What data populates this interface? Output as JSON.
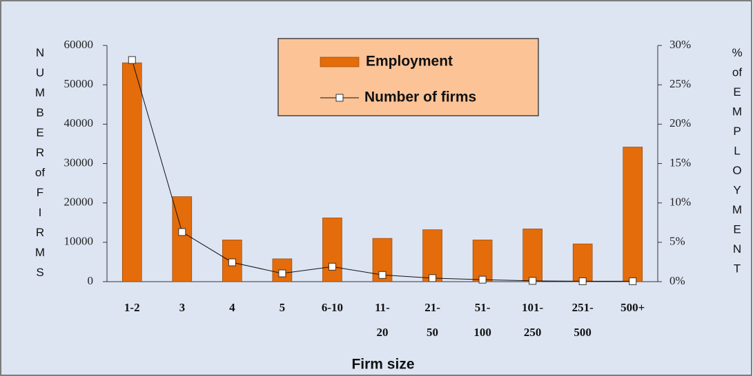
{
  "chart_data": {
    "type": "bar_line",
    "x_label": "Firm size",
    "y_label": "NUMBER of FIRMS",
    "y2_label": "% of EMPLOYMENT",
    "categories": [
      "1-2",
      "3",
      "4",
      "5",
      "6-10",
      "11-20",
      "21-50",
      "51-100",
      "101-250",
      "251-500",
      "500+"
    ],
    "series": [
      {
        "name": "Employment",
        "type": "bar",
        "axis": "y2",
        "color": "#e46c0a",
        "values": [
          27.8,
          10.8,
          5.3,
          2.9,
          8.1,
          5.5,
          6.6,
          5.3,
          6.7,
          4.8,
          17.1
        ]
      },
      {
        "name": "Number of firms",
        "type": "line",
        "axis": "y",
        "color": "#111111",
        "values": [
          56300,
          12600,
          4900,
          2100,
          3800,
          1700,
          900,
          500,
          200,
          100,
          100
        ]
      }
    ],
    "ylim": [
      0,
      60000
    ],
    "yticks": [
      0,
      10000,
      20000,
      30000,
      40000,
      50000,
      60000
    ],
    "y2lim": [
      0,
      30
    ],
    "y2ticks": [
      {
        "value": 0,
        "label": "0%"
      },
      {
        "value": 5,
        "label": "5%"
      },
      {
        "value": 10,
        "label": "10%"
      },
      {
        "value": 15,
        "label": "15%"
      },
      {
        "value": 20,
        "label": "20%"
      },
      {
        "value": 25,
        "label": "25%"
      },
      {
        "value": 30,
        "label": "30%"
      }
    ]
  }
}
